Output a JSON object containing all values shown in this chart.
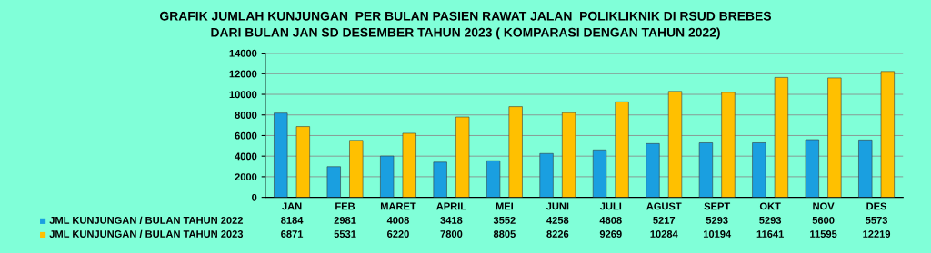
{
  "chart_data": {
    "type": "bar",
    "title": "GRAFIK JUMLAH KUNJUNGAN  PER BULAN PASIEN RAWAT JALAN  POLIKLIKNIK DI RSUD BREBES\nDARI BULAN JAN SD DESEMBER TAHUN 2023 ( KOMPARASI DENGAN TAHUN 2022)",
    "categories": [
      "JAN",
      "FEB",
      "MARET",
      "APRIL",
      "MEI",
      "JUNI",
      "JULI",
      "AGUST",
      "SEPT",
      "OKT",
      "NOV",
      "DES"
    ],
    "series": [
      {
        "name": "JML KUNJUNGAN / BULAN TAHUN 2022",
        "color": "#1a9fe0",
        "values": [
          8184,
          2981,
          4008,
          3418,
          3552,
          4258,
          4608,
          5217,
          5293,
          5293,
          5600,
          5573
        ]
      },
      {
        "name": "JML KUNJUNGAN / BULAN TAHUN 2023",
        "color": "#ffc000",
        "values": [
          6871,
          5531,
          6220,
          7800,
          8805,
          8226,
          9269,
          10284,
          10194,
          11641,
          11595,
          12219
        ]
      }
    ],
    "ylim": [
      0,
      14000
    ],
    "yticks": [
      0,
      2000,
      4000,
      6000,
      8000,
      10000,
      12000,
      14000
    ],
    "grid": "y",
    "legend": "bottom left",
    "data_labels": true
  }
}
